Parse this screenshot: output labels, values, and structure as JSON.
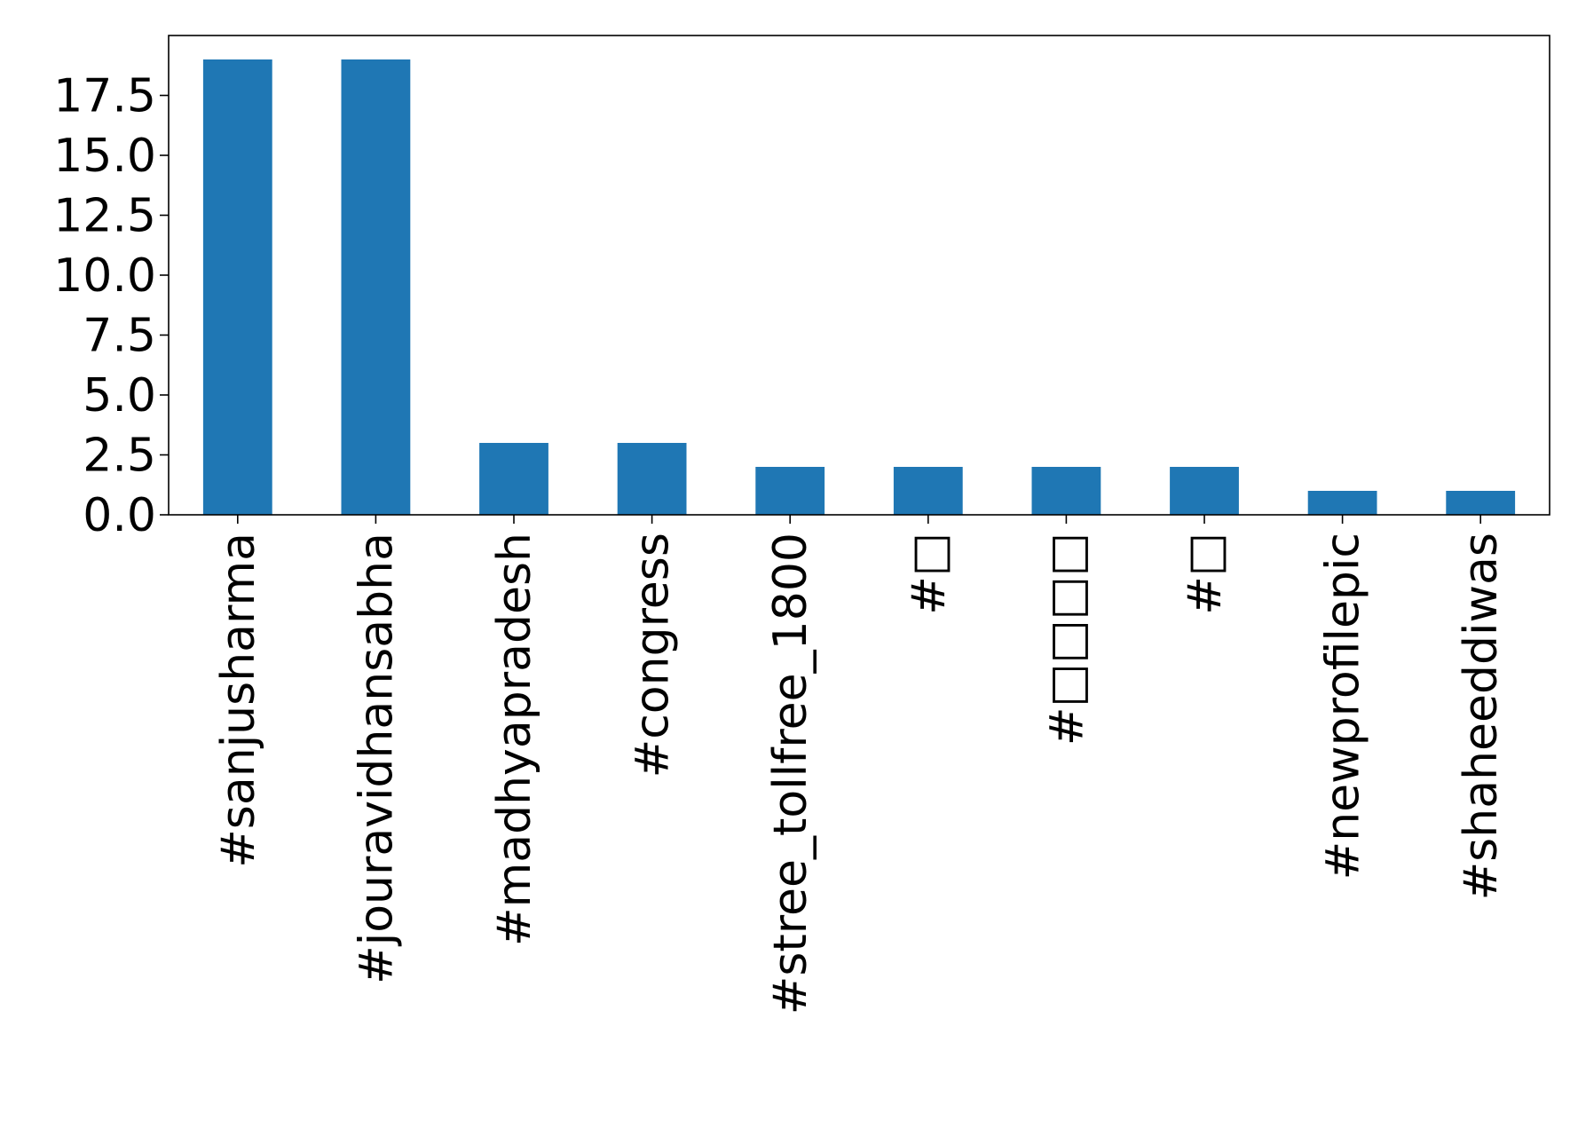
{
  "chart_data": {
    "type": "bar",
    "categories": [
      "#sanjusharma",
      "#jouravidhansabha",
      "#madhyapradesh",
      "#congress",
      "#stree_tollfree_1800",
      "#□",
      "#□□□□",
      "#□",
      "#newprofilepic",
      "#shaheeddiwas"
    ],
    "values": [
      19,
      19,
      3,
      3,
      2,
      2,
      2,
      2,
      1,
      1
    ],
    "ylim": [
      0,
      20
    ],
    "yticks": [
      0.0,
      2.5,
      5.0,
      7.5,
      10.0,
      12.5,
      15.0,
      17.5
    ],
    "ytick_labels": [
      "0.0",
      "2.5",
      "5.0",
      "7.5",
      "10.0",
      "12.5",
      "15.0",
      "17.5"
    ],
    "title": "",
    "xlabel": "",
    "ylabel": "",
    "grid": false,
    "bar_color": "#1f77b4"
  }
}
